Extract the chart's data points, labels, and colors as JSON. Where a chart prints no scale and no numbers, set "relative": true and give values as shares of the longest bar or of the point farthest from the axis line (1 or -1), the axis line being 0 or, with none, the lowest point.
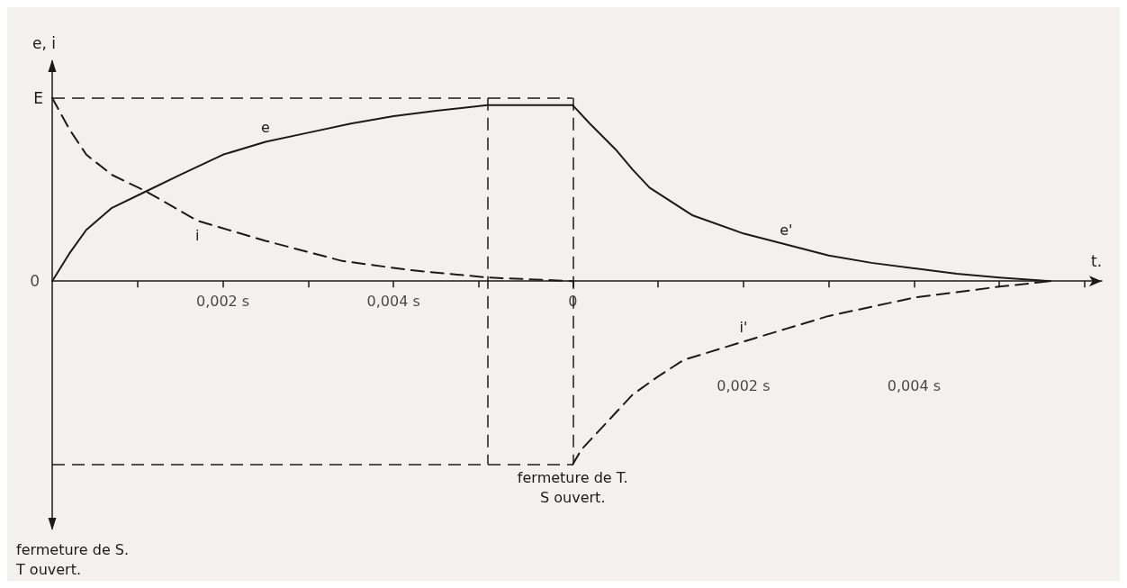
{
  "chart_data": {
    "type": "line",
    "relative": true,
    "ylabel": "e, i",
    "xlabel": "t.",
    "xlim": [
      0,
      0.0123
    ],
    "xticks": [
      {
        "value": 0.001,
        "label": null
      },
      {
        "value": 0.002,
        "label": "0,002 s"
      },
      {
        "value": 0.003,
        "label": null
      },
      {
        "value": 0.004,
        "label": "0,004 s"
      },
      {
        "value": 0.005,
        "label": null
      },
      {
        "value": 0.0061,
        "label": "0"
      }
    ],
    "x2lim": [
      -0.0061,
      0.0062
    ],
    "x2ticks": [
      {
        "value": 0,
        "label": null
      },
      {
        "value": 0.001,
        "label": null
      },
      {
        "value": 0.002,
        "label": "0,002 s"
      },
      {
        "value": 0.003,
        "label": null
      },
      {
        "value": 0.004,
        "label": "0,004 s"
      },
      {
        "value": 0.005,
        "label": null
      },
      {
        "value": 0.006,
        "label": null
      }
    ],
    "series": [
      {
        "name": "e",
        "color": "#1a1a1a",
        "line_style": "solid",
        "x": [
          0,
          0.0002,
          0.0004,
          0.0007,
          0.0011,
          0.0015,
          0.002,
          0.0025,
          0.003,
          0.0035,
          0.004,
          0.0045,
          0.0051,
          0.0061
        ],
        "values": [
          0,
          0.15,
          0.28,
          0.4,
          0.49,
          0.58,
          0.69,
          0.76,
          0.81,
          0.86,
          0.9,
          0.93,
          0.96,
          0.96
        ]
      },
      {
        "name": "i",
        "color": "#1a1a1a",
        "line_style": "dashed",
        "x": [
          0,
          0.0002,
          0.0004,
          0.0007,
          0.0011,
          0.0017,
          0.0025,
          0.0034,
          0.0042,
          0.0051,
          0.0061
        ],
        "values": [
          1,
          0.83,
          0.69,
          0.58,
          0.49,
          0.33,
          0.22,
          0.11,
          0.06,
          0.02,
          0
        ]
      },
      {
        "name": "e'",
        "color": "#1a1a1a",
        "line_style": "solid",
        "x": [
          0.0061,
          0.0063,
          0.0066,
          0.0068,
          0.007,
          0.0075,
          0.0081,
          0.0086,
          0.0091,
          0.0096,
          0.0101,
          0.0106,
          0.0111,
          0.0117
        ],
        "values": [
          0.96,
          0.86,
          0.72,
          0.61,
          0.51,
          0.36,
          0.26,
          0.2,
          0.14,
          0.1,
          0.07,
          0.04,
          0.02,
          0
        ]
      },
      {
        "name": "i'",
        "color": "#1a1a1a",
        "line_style": "dashed",
        "x": [
          0.0061,
          0.0062,
          0.0064,
          0.0066,
          0.0068,
          0.0071,
          0.0074,
          0.0081,
          0.0086,
          0.0091,
          0.0096,
          0.0101,
          0.0106,
          0.0111,
          0.0117
        ],
        "values": [
          -1,
          -0.92,
          -0.82,
          -0.72,
          -0.62,
          -0.52,
          -0.43,
          -0.33,
          -0.26,
          -0.19,
          -0.14,
          -0.09,
          -0.06,
          -0.03,
          0
        ]
      }
    ],
    "ref_lines": [
      {
        "axis": "y",
        "value": 1,
        "label": "E",
        "line_style": "dashed"
      },
      {
        "axis": "y",
        "value": -1,
        "line_style": "dashed"
      },
      {
        "axis": "x",
        "value": 0.0051,
        "line_style": "dashed"
      },
      {
        "axis": "x",
        "value": 0.0061,
        "label": "fermeture de T.\nS ouvert.",
        "line_style": "dashed"
      }
    ],
    "annotations": [
      {
        "text": "0",
        "x": 0,
        "y": 0
      },
      "fermeture de S.\nT ouvert."
    ],
    "grid": false,
    "legend": false
  }
}
